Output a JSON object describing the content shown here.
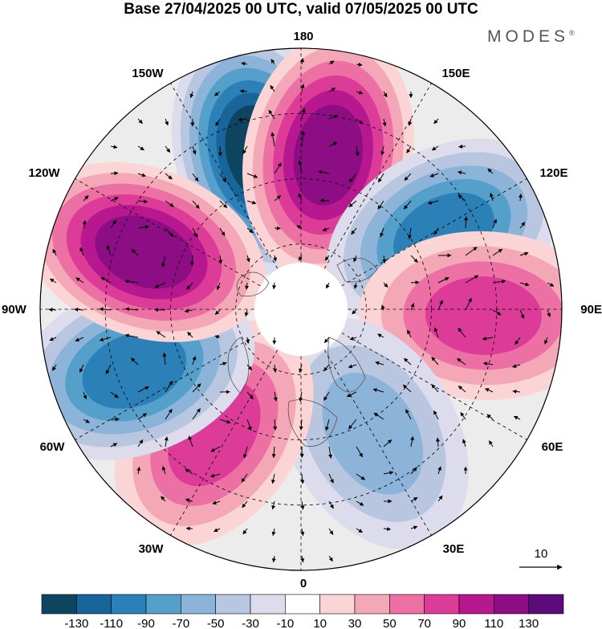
{
  "title": "Base 27/04/2025 00 UTC, valid 07/05/2025 00 UTC",
  "brand": "MODES",
  "brand_mark": "®",
  "longitude_labels": {
    "top": "180",
    "bottom": "0",
    "left": "90W",
    "right": "90E",
    "upper_left_a": "150W",
    "upper_left_b": "120W",
    "upper_right_a": "150E",
    "upper_right_b": "120E",
    "lower_left_a": "60W",
    "lower_left_b": "30W",
    "lower_right_a": "60E",
    "lower_right_b": "30E"
  },
  "vector_scale": {
    "label": "10"
  },
  "colorbar": {
    "labels": [
      "-130",
      "-110",
      "-90",
      "-70",
      "-50",
      "-30",
      "-10",
      "10",
      "30",
      "50",
      "70",
      "90",
      "110",
      "130"
    ],
    "colors": [
      "#0d4560",
      "#17659a",
      "#2b80b7",
      "#559fcb",
      "#8cb4d8",
      "#b8c6e0",
      "#dcdcec",
      "#ffffff",
      "#fbd5d5",
      "#f4a7b6",
      "#ec70a4",
      "#dc3c98",
      "#b8188f",
      "#8d0d85",
      "#5d0a7a"
    ]
  },
  "chart_data": {
    "type": "heatmap",
    "projection": "north polar stereographic",
    "field": "anomaly with wind vectors",
    "valid_from": "27/04/2025 00 UTC",
    "valid_to": "07/05/2025 00 UTC",
    "contour_levels": [
      -130,
      -110,
      -90,
      -70,
      -50,
      -30,
      -10,
      10,
      30,
      50,
      70,
      90,
      110,
      130
    ],
    "anomaly_centers": [
      {
        "lon": 195,
        "colat": 0.62,
        "value": -130
      },
      {
        "lon": 170,
        "colat": 0.6,
        "value": 110
      },
      {
        "lon": 118,
        "colat": 0.62,
        "value": -90
      },
      {
        "lon": 88,
        "colat": 0.7,
        "value": 70
      },
      {
        "lon": 30,
        "colat": 0.55,
        "value": -50
      },
      {
        "lon": 325,
        "colat": 0.58,
        "value": 70
      },
      {
        "lon": 290,
        "colat": 0.68,
        "value": -90
      },
      {
        "lon": 250,
        "colat": 0.64,
        "value": 110
      }
    ]
  }
}
